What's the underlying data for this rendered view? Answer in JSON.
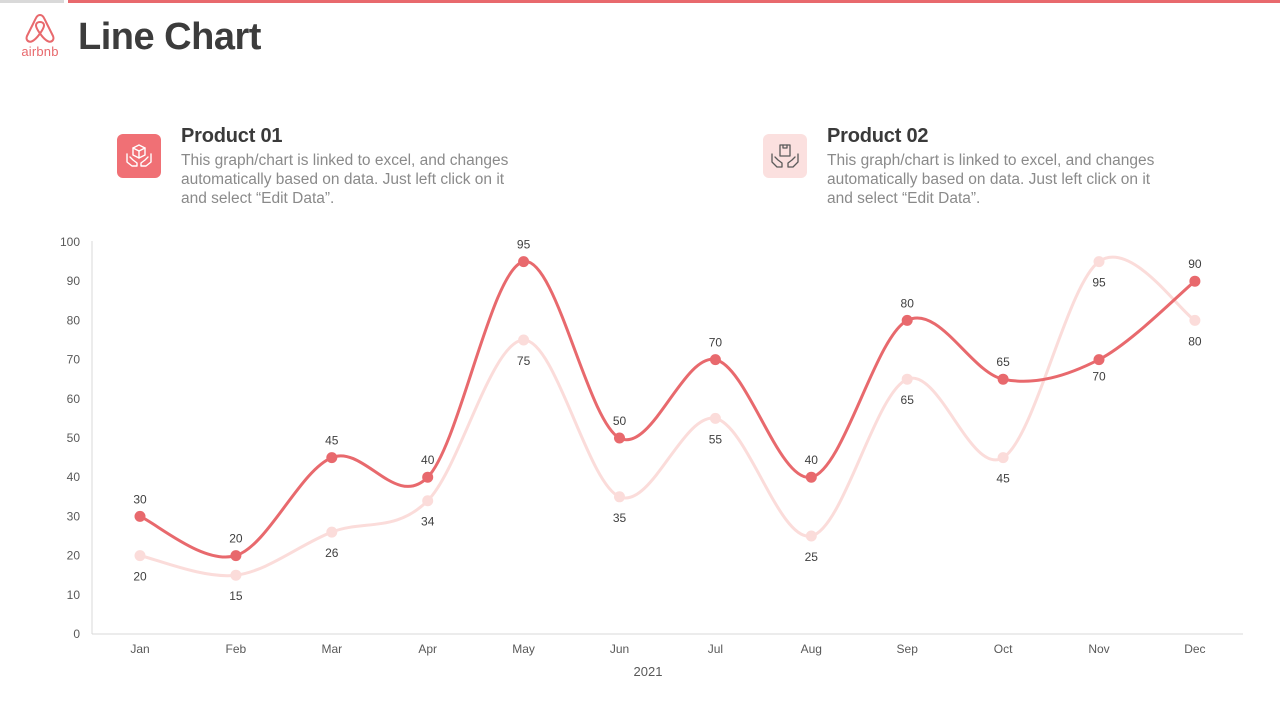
{
  "header": {
    "title": "Line Chart",
    "logo_text": "airbnb"
  },
  "colors": {
    "accent": "#e8696d",
    "series1": "#e8696d",
    "series2": "#fbdcda",
    "axis": "#d9d9d9"
  },
  "legend": [
    {
      "title": "Product 01",
      "description": "This graph/chart is linked to excel, and changes automatically based on data. Just left click on it and select “Edit Data”.",
      "icon": "hands-box-icon"
    },
    {
      "title": "Product 02",
      "description": "This graph/chart is linked to excel, and changes automatically based on data. Just left click on it and select “Edit Data”.",
      "icon": "hands-package-icon"
    }
  ],
  "chart_data": {
    "type": "line",
    "title": "",
    "xlabel": "2021",
    "ylabel": "",
    "categories": [
      "Jan",
      "Feb",
      "Mar",
      "Apr",
      "May",
      "Jun",
      "Jul",
      "Aug",
      "Sep",
      "Oct",
      "Nov",
      "Dec"
    ],
    "ylim": [
      0,
      100
    ],
    "yticks": [
      0,
      10,
      20,
      30,
      40,
      50,
      60,
      70,
      80,
      90,
      100
    ],
    "series": [
      {
        "name": "Product 01",
        "values": [
          30,
          20,
          45,
          40,
          95,
          50,
          70,
          40,
          80,
          65,
          70,
          90
        ],
        "color": "#e8696d",
        "labels": [
          "30",
          "20",
          "45",
          "40",
          "95",
          "50",
          "70",
          "40",
          "80",
          "65",
          "70",
          "90"
        ]
      },
      {
        "name": "Product 02",
        "values": [
          20,
          15,
          26,
          34,
          75,
          35,
          55,
          25,
          65,
          45,
          95,
          80
        ],
        "color": "#fbdcda",
        "labels": [
          "20",
          "15",
          "26",
          "34",
          "75",
          "35",
          "55",
          "25",
          "65",
          "45",
          "95",
          "80"
        ]
      }
    ],
    "grid": false,
    "smooth": true
  }
}
